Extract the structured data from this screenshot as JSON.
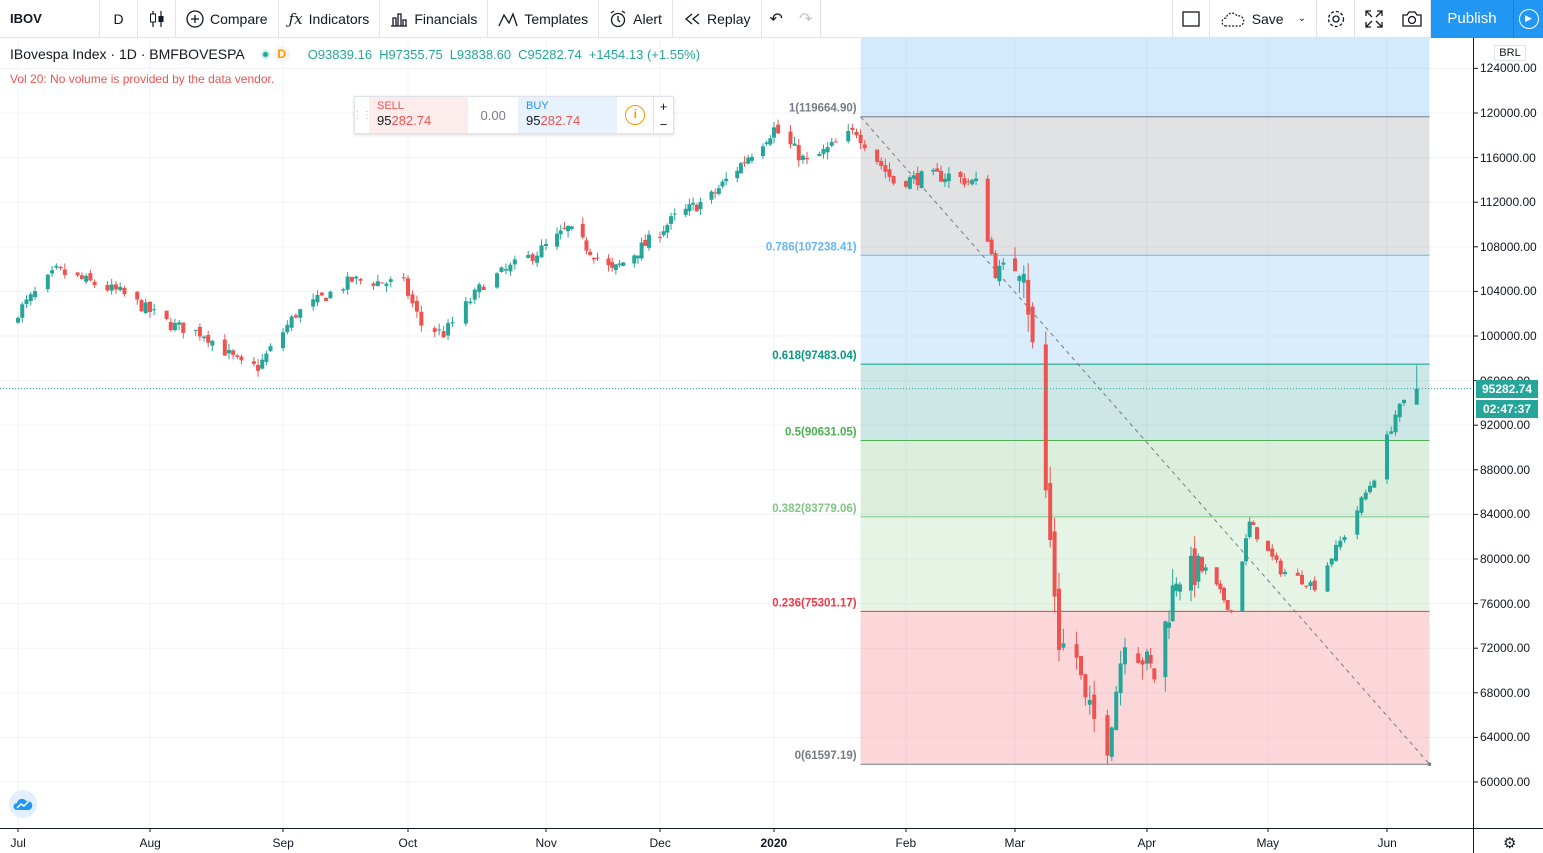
{
  "toolbar": {
    "symbol": "IBOV",
    "interval": "D",
    "compare": "Compare",
    "indicators": "Indicators",
    "financials": "Financials",
    "templates": "Templates",
    "alert": "Alert",
    "replay": "Replay",
    "save": "Save",
    "publish": "Publish"
  },
  "legend": {
    "name": "IBovespa Index · 1D · BMFBOVESPA",
    "badge": "D",
    "open": "O93839.16",
    "high": "H97355.75",
    "low": "L93838.60",
    "close": "C95282.74",
    "change": "+1454.13 (+1.55%)",
    "volume_message": "Vol 20: No volume is provided by the data vendor."
  },
  "trade": {
    "sell_label": "SELL",
    "sell_price_prefix": "95",
    "sell_price_suffix": "282.74",
    "spread": "0.00",
    "buy_label": "BUY",
    "buy_price_prefix": "95",
    "buy_price_suffix": "282.74",
    "plus": "+",
    "minus": "−"
  },
  "price_scale": {
    "currency": "BRL",
    "current_price": "95282.74",
    "countdown": "02:47:37"
  },
  "colors": {
    "up": "#26a69a",
    "down": "#ef5350",
    "accent": "#2196f3"
  },
  "chart_data": {
    "type": "candlestick",
    "symbol": "IBOV",
    "exchange": "BMFBOVESPA",
    "interval": "1D",
    "currency": "BRL",
    "y_ticks": [
      60000,
      64000,
      68000,
      72000,
      76000,
      80000,
      84000,
      88000,
      92000,
      96000,
      100000,
      104000,
      108000,
      112000,
      116000,
      120000,
      124000
    ],
    "x_ticks": [
      "Jul",
      "Aug",
      "Sep",
      "Oct",
      "Nov",
      "Dec",
      "2020",
      "Feb",
      "Mar",
      "Apr",
      "May",
      "Jun"
    ],
    "ylim": [
      57000,
      126500
    ],
    "last": {
      "open": 93839.16,
      "high": 97355.75,
      "low": 93838.6,
      "close": 95282.74,
      "change": 1454.13,
      "change_pct": 1.55
    },
    "close_path": [
      [
        "2019-06-28",
        100967
      ],
      [
        "2019-07-10",
        105817
      ],
      [
        "2019-07-25",
        103900
      ],
      [
        "2019-08-06",
        101000
      ],
      [
        "2019-08-14",
        100200
      ],
      [
        "2019-08-23",
        97400
      ],
      [
        "2019-08-27",
        97200
      ],
      [
        "2019-09-05",
        102000
      ],
      [
        "2019-09-18",
        105000
      ],
      [
        "2019-09-30",
        104700
      ],
      [
        "2019-10-04",
        101000
      ],
      [
        "2019-10-09",
        100200
      ],
      [
        "2019-10-18",
        104700
      ],
      [
        "2019-10-30",
        107500
      ],
      [
        "2019-11-07",
        109600
      ],
      [
        "2019-11-19",
        105800
      ],
      [
        "2019-11-28",
        108200
      ],
      [
        "2019-12-06",
        110600
      ],
      [
        "2019-12-16",
        112500
      ],
      [
        "2019-12-27",
        116500
      ],
      [
        "2020-01-02",
        118573
      ],
      [
        "2020-01-10",
        115500
      ],
      [
        "2020-01-22",
        118400
      ],
      [
        "2020-01-31",
        113800
      ],
      [
        "2020-02-07",
        114200
      ],
      [
        "2020-02-14",
        114400
      ],
      [
        "2020-02-21",
        113700
      ],
      [
        "2020-02-26",
        105700
      ],
      [
        "2020-03-04",
        107200
      ],
      [
        "2020-03-09",
        86000
      ],
      [
        "2020-03-12",
        72600
      ],
      [
        "2020-03-16",
        71200
      ],
      [
        "2020-03-18",
        66900
      ],
      [
        "2020-03-23",
        63500
      ],
      [
        "2020-03-27",
        73400
      ],
      [
        "2020-04-03",
        69500
      ],
      [
        "2020-04-09",
        78600
      ],
      [
        "2020-04-17",
        78990
      ],
      [
        "2020-04-24",
        75330
      ],
      [
        "2020-04-29",
        83200
      ],
      [
        "2020-05-07",
        79000
      ],
      [
        "2020-05-15",
        77600
      ],
      [
        "2020-05-22",
        82200
      ],
      [
        "2020-05-29",
        87400
      ],
      [
        "2020-06-03",
        93000
      ],
      [
        "2020-06-08",
        95282.74
      ]
    ],
    "fibonacci": {
      "levels": [
        {
          "ratio": "1",
          "price": 119664.9,
          "label": "1(119664.90)"
        },
        {
          "ratio": "0.786",
          "price": 107238.41,
          "label": "0.786(107238.41)"
        },
        {
          "ratio": "0.618",
          "price": 97483.04,
          "label": "0.618(97483.04)"
        },
        {
          "ratio": "0.5",
          "price": 90631.05,
          "label": "0.5(90631.05)"
        },
        {
          "ratio": "0.382",
          "price": 83779.06,
          "label": "0.382(83779.06)"
        },
        {
          "ratio": "0.236",
          "price": 75301.17,
          "label": "0.236(75301.17)"
        },
        {
          "ratio": "0",
          "price": 61597.19,
          "label": "0(61597.19)"
        }
      ],
      "start_date": "2020-01-23",
      "end_date": "2020-06-11"
    }
  }
}
